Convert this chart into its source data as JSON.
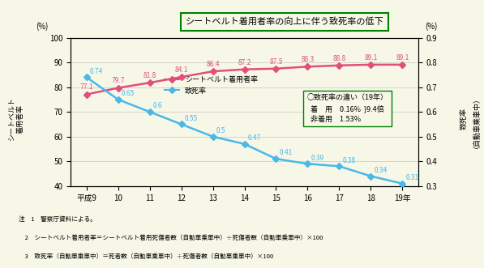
{
  "years": [
    "平成9",
    "10",
    "11",
    "12",
    "13",
    "14",
    "15",
    "16",
    "17",
    "18",
    "19年"
  ],
  "year_indices": [
    9,
    10,
    11,
    12,
    13,
    14,
    15,
    16,
    17,
    18,
    19
  ],
  "seatbelt_rate": [
    77.1,
    79.7,
    81.8,
    84.1,
    86.4,
    87.2,
    87.5,
    88.3,
    88.8,
    89.1,
    89.1
  ],
  "fatality_rate": [
    0.74,
    0.65,
    0.6,
    0.55,
    0.5,
    0.47,
    0.41,
    0.39,
    0.38,
    0.34,
    0.31
  ],
  "seatbelt_color": "#e0507a",
  "fatality_color": "#4ab8e8",
  "bg_color": "#f7f7e8",
  "left_ylim": [
    40,
    100
  ],
  "right_ylim": [
    0.3,
    0.9
  ],
  "title": "シートベルト着用者率の向上に伴う致死率の低下",
  "legend_seatbelt": "シートベルト着用者率",
  "legend_fatality": "致死率",
  "left_ylabel_lines": [
    "シ",
    "ー",
    "ト",
    "ベ",
    "ル",
    "ト",
    "着",
    "用",
    "者",
    "率"
  ],
  "right_ylabel_lines": [
    "致",
    "死",
    "率",
    "（",
    "自",
    "動",
    "車",
    "乗",
    "車",
    "中",
    "）"
  ],
  "note_title": "○致死率の違い（19年）",
  "note_line1": "着　用　0.16%",
  "note_line2": "非着用　1.53%",
  "note_times": "9.4倍",
  "pct_label": "(%)",
  "footnotes": [
    "注　1　警察庁資料による。",
    "　2　シートベルト着用者率＝シートベルト着用死傷者数（自動車乗車中）÷死傷者数（自動車乗車中）×100",
    "　3　致死率（自動車乗車中）＝死者数（自動車乗車中）÷死傷者数（自動車乗車中）×100"
  ]
}
